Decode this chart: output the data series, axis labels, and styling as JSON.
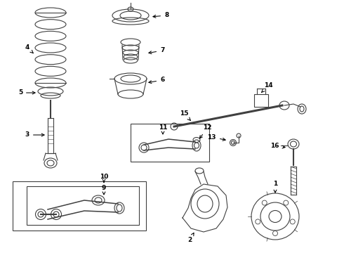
{
  "background_color": "#ffffff",
  "line_color": "#404040",
  "label_color": "#000000",
  "fig_width": 4.9,
  "fig_height": 3.6,
  "dpi": 100
}
